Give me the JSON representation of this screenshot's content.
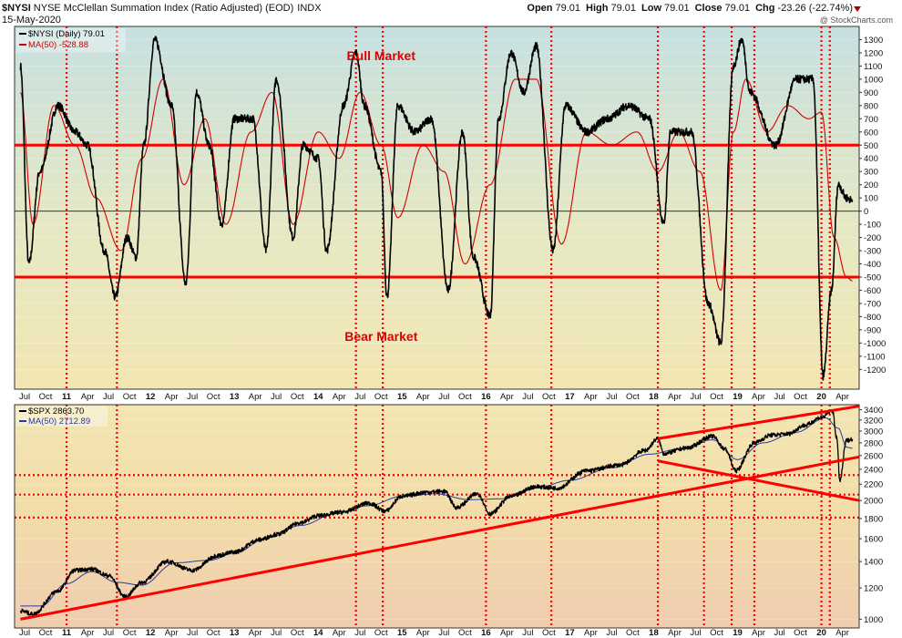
{
  "header": {
    "symbol": "$NYSI",
    "description": "NYSE McClellan Summation Index (Ratio Adjusted) (EOD)",
    "exchange": "INDX",
    "date": "15-May-2020",
    "open_label": "Open",
    "open": "79.01",
    "high_label": "High",
    "high": "79.01",
    "low_label": "Low",
    "low": "79.01",
    "close_label": "Close",
    "close": "79.01",
    "chg_label": "Chg",
    "chg": "-23.26 (-22.74%)",
    "watermark": "@ StockCharts.com"
  },
  "colors": {
    "price": "#000000",
    "ma": "#d00000",
    "guide": "#ff0000",
    "zero": "#2a2a9a",
    "grid": "#8a8a8a",
    "price_ma": "#2a3aa0"
  },
  "chart_data": [
    {
      "type": "line",
      "legend": [
        "$NYSI (Daily) 79.01",
        "MA(50) -528.88"
      ],
      "series": [
        {
          "name": "$NYSI (Daily)",
          "x": [
            2010.45,
            2010.55,
            2010.68,
            2010.9,
            2011.1,
            2011.25,
            2011.45,
            2011.58,
            2011.72,
            2011.83,
            2011.92,
            2012.05,
            2012.25,
            2012.42,
            2012.55,
            2012.7,
            2012.85,
            2013.0,
            2013.22,
            2013.38,
            2013.5,
            2013.7,
            2013.82,
            2014.0,
            2014.1,
            2014.3,
            2014.45,
            2014.55,
            2014.75,
            2014.82,
            2014.95,
            2015.15,
            2015.35,
            2015.55,
            2015.72,
            2015.85,
            2016.05,
            2016.15,
            2016.3,
            2016.45,
            2016.6,
            2016.8,
            2016.95,
            2017.2,
            2017.45,
            2017.7,
            2017.95,
            2018.12,
            2018.2,
            2018.45,
            2018.65,
            2018.8,
            2018.95,
            2019.05,
            2019.15,
            2019.45,
            2019.7,
            2019.9,
            2020.02,
            2020.12,
            2020.2,
            2020.3,
            2020.37
          ],
          "y": [
            1100,
            -400,
            300,
            800,
            600,
            500,
            -300,
            -650,
            -200,
            -350,
            500,
            1300,
            800,
            -550,
            900,
            500,
            -100,
            700,
            700,
            -300,
            1000,
            -200,
            500,
            400,
            -300,
            800,
            1200,
            800,
            300,
            -650,
            800,
            600,
            700,
            -600,
            600,
            -350,
            -800,
            700,
            1200,
            900,
            1250,
            -300,
            800,
            600,
            700,
            800,
            700,
            -100,
            600,
            600,
            -700,
            -1000,
            1100,
            1300,
            900,
            500,
            1000,
            1000,
            -1250,
            -600,
            200,
            100,
            79
          ]
        },
        {
          "name": "MA(50)",
          "x": [
            2010.45,
            2010.6,
            2010.85,
            2011.1,
            2011.35,
            2011.65,
            2011.9,
            2012.15,
            2012.4,
            2012.65,
            2012.9,
            2013.2,
            2013.45,
            2013.7,
            2014.0,
            2014.25,
            2014.5,
            2014.75,
            2014.95,
            2015.25,
            2015.5,
            2015.75,
            2016.05,
            2016.35,
            2016.6,
            2016.9,
            2017.2,
            2017.5,
            2017.8,
            2018.05,
            2018.3,
            2018.55,
            2018.8,
            2018.95,
            2019.1,
            2019.35,
            2019.6,
            2019.85,
            2020.0,
            2020.15,
            2020.3,
            2020.37
          ],
          "y": [
            900,
            -100,
            800,
            500,
            100,
            -300,
            400,
            1000,
            200,
            700,
            -100,
            600,
            900,
            -100,
            600,
            400,
            900,
            500,
            -50,
            500,
            300,
            -400,
            200,
            1000,
            1000,
            -250,
            600,
            500,
            600,
            300,
            600,
            300,
            -600,
            600,
            1000,
            600,
            800,
            700,
            750,
            -200,
            -500,
            -529
          ]
        }
      ],
      "ylim": [
        -1350,
        1400
      ],
      "yticks": [
        1300,
        1200,
        1100,
        1000,
        900,
        800,
        700,
        600,
        500,
        400,
        300,
        200,
        100,
        0,
        -100,
        -200,
        -300,
        -400,
        -500,
        -600,
        -700,
        -800,
        -900,
        -1000,
        -1100,
        -1200
      ],
      "annotations": [
        {
          "text": "Bull Market",
          "x": 2014.75,
          "y": 1180
        },
        {
          "text": "Bear Market",
          "x": 2014.75,
          "y": -950
        }
      ],
      "reference_lines": [
        500,
        -500,
        0
      ]
    },
    {
      "type": "line",
      "log_scale": true,
      "legend": [
        "$SPX 2863.70",
        "MA(50) 2712.89"
      ],
      "series": [
        {
          "name": "$SPX",
          "x": [
            2010.45,
            2010.6,
            2010.9,
            2011.1,
            2011.3,
            2011.5,
            2011.7,
            2011.9,
            2012.2,
            2012.5,
            2012.8,
            2013.0,
            2013.3,
            2013.5,
            2013.8,
            2014.0,
            2014.3,
            2014.6,
            2014.8,
            2015.0,
            2015.3,
            2015.5,
            2015.65,
            2015.9,
            2016.05,
            2016.3,
            2016.6,
            2016.85,
            2017.2,
            2017.6,
            2017.9,
            2018.05,
            2018.12,
            2018.4,
            2018.7,
            2018.85,
            2018.98,
            2019.2,
            2019.4,
            2019.6,
            2019.8,
            2020.0,
            2020.13,
            2020.18,
            2020.22,
            2020.3,
            2020.37
          ],
          "y": [
            1050,
            1030,
            1180,
            1330,
            1340,
            1290,
            1140,
            1240,
            1400,
            1330,
            1450,
            1480,
            1590,
            1640,
            1760,
            1830,
            1870,
            1970,
            1880,
            2050,
            2100,
            2110,
            1920,
            2080,
            1850,
            2050,
            2170,
            2150,
            2380,
            2460,
            2680,
            2870,
            2630,
            2720,
            2910,
            2700,
            2380,
            2800,
            2930,
            2950,
            3100,
            3250,
            3380,
            2900,
            2240,
            2840,
            2863.7
          ]
        },
        {
          "name": "MA(50)",
          "x": [
            2010.45,
            2010.7,
            2011.0,
            2011.3,
            2011.6,
            2011.9,
            2012.3,
            2012.7,
            2013.0,
            2013.4,
            2013.8,
            2014.2,
            2014.6,
            2015.0,
            2015.4,
            2015.8,
            2016.2,
            2016.6,
            2017.0,
            2017.5,
            2017.95,
            2018.3,
            2018.7,
            2019.0,
            2019.3,
            2019.7,
            2020.05,
            2020.2,
            2020.3,
            2020.37
          ],
          "y": [
            1080,
            1080,
            1230,
            1320,
            1240,
            1220,
            1390,
            1410,
            1470,
            1610,
            1730,
            1850,
            1940,
            2050,
            2080,
            2010,
            2020,
            2150,
            2250,
            2420,
            2620,
            2700,
            2850,
            2540,
            2800,
            2980,
            3240,
            3050,
            2730,
            2712.89
          ]
        }
      ],
      "ylim": [
        950,
        3500
      ],
      "yticks": [
        3400,
        3200,
        3000,
        2800,
        2600,
        2400,
        2200,
        2000,
        1800,
        1600,
        1400,
        1200,
        1000
      ],
      "trendlines": [
        [
          [
            2010.45,
            1000
          ],
          [
            2020.45,
            2580
          ]
        ],
        [
          [
            2018.05,
            2870
          ],
          [
            2020.45,
            3470
          ]
        ],
        [
          [
            2018.05,
            2520
          ],
          [
            2020.45,
            2000
          ]
        ]
      ],
      "horizontal_guides": [
        2320,
        2070,
        1810
      ]
    }
  ],
  "x_axis": {
    "range": [
      2010.38,
      2020.45
    ],
    "labels": [
      "Jul",
      "Oct",
      "11",
      "Apr",
      "Jul",
      "Oct",
      "12",
      "Apr",
      "Jul",
      "Oct",
      "13",
      "Apr",
      "Jul",
      "Oct",
      "14",
      "Apr",
      "Jul",
      "Oct",
      "15",
      "Apr",
      "Jul",
      "Oct",
      "16",
      "Apr",
      "Jul",
      "Oct",
      "17",
      "Apr",
      "Jul",
      "Oct",
      "18",
      "Apr",
      "Jul",
      "Oct",
      "19",
      "Apr",
      "Jul",
      "Oct",
      "20",
      "Apr"
    ],
    "label_x": [
      2010.5,
      2010.75,
      2011.0,
      2011.25,
      2011.5,
      2011.75,
      2012.0,
      2012.25,
      2012.5,
      2012.75,
      2013.0,
      2013.25,
      2013.5,
      2013.75,
      2014.0,
      2014.25,
      2014.5,
      2014.75,
      2015.0,
      2015.25,
      2015.5,
      2015.75,
      2016.0,
      2016.25,
      2016.5,
      2016.75,
      2017.0,
      2017.25,
      2017.5,
      2017.75,
      2018.0,
      2018.25,
      2018.5,
      2018.75,
      2019.0,
      2019.25,
      2019.5,
      2019.75,
      2020.0,
      2020.25
    ],
    "vertical_markers": [
      2011.0,
      2011.6,
      2014.45,
      2014.77,
      2016.0,
      2016.78,
      2018.05,
      2018.6,
      2018.93,
      2019.2,
      2020.0,
      2020.1
    ]
  }
}
